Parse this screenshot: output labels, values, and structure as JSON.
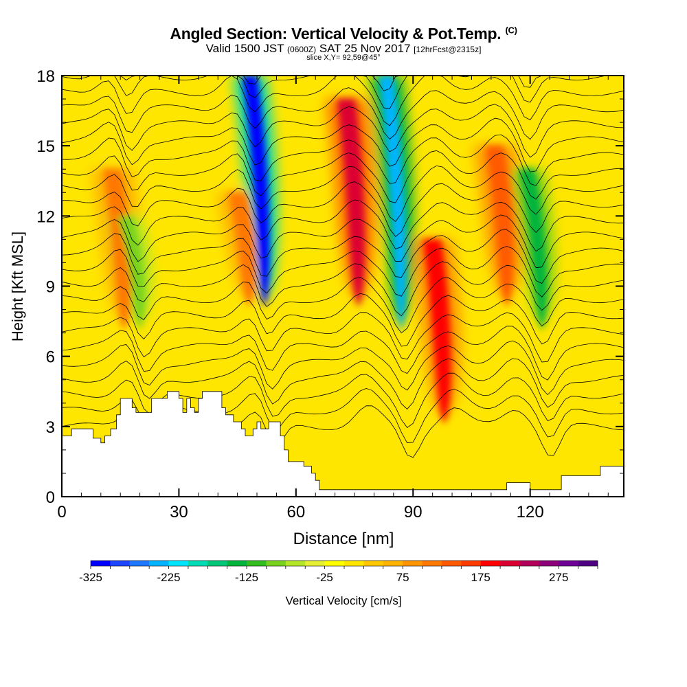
{
  "header": {
    "title_main": "Angled Section: Vertical Velocity & Pot.Temp.",
    "title_unit": "(C)",
    "valid_prefix": "Valid 1500 JST",
    "valid_utc": "(0600Z)",
    "valid_date": "SAT 25 Nov 2017",
    "forecast": "[12hrFcst@2315z]",
    "slice": "slice X,Y= 92,59@45°"
  },
  "chart_data": {
    "type": "heatmap",
    "xlabel": "Distance [nm]",
    "ylabel": "Height [Kft MSL]",
    "xlim": [
      0,
      144
    ],
    "ylim": [
      0,
      18
    ],
    "x_ticks": [
      0,
      30,
      60,
      90,
      120
    ],
    "y_ticks": [
      0,
      3,
      6,
      9,
      12,
      15,
      18
    ],
    "colorbar": {
      "label": "Vertical Velocity [cm/s]",
      "min": -325,
      "max": 325,
      "step": 25,
      "tick_values": [
        -325,
        -225,
        -125,
        -25,
        75,
        175,
        275
      ],
      "tick_labels": [
        "-325",
        "-225",
        "-125",
        "-25",
        "75",
        "175",
        "275"
      ],
      "colors": [
        "#0000ff",
        "#1e46ff",
        "#1e78ff",
        "#00b4ff",
        "#00e6ff",
        "#00dcb4",
        "#00c878",
        "#00b43c",
        "#32be1e",
        "#78d21e",
        "#b4e628",
        "#e6f032",
        "#ffff00",
        "#ffe600",
        "#ffc800",
        "#ffb400",
        "#ff9600",
        "#ff7800",
        "#ff5a00",
        "#ff3c00",
        "#ff0000",
        "#dc0032",
        "#b4005a",
        "#8c0078",
        "#6e0096",
        "#500082"
      ]
    },
    "updraft_maxima": [
      {
        "x": 16,
        "y_range": [
          8,
          14
        ],
        "w": 110
      },
      {
        "x": 48,
        "y_range": [
          9,
          13
        ],
        "w": 100
      },
      {
        "x": 76,
        "y_range": [
          9,
          17
        ],
        "w": 220
      },
      {
        "x": 98,
        "y_range": [
          4,
          11
        ],
        "w": 180
      },
      {
        "x": 114,
        "y_range": [
          9,
          15
        ],
        "w": 140
      }
    ],
    "downdraft_minima": [
      {
        "x": 20,
        "y_range": [
          8,
          12
        ],
        "w": -100
      },
      {
        "x": 52,
        "y_range": [
          9,
          18
        ],
        "w": -320
      },
      {
        "x": 87,
        "y_range": [
          8,
          18
        ],
        "w": -240
      },
      {
        "x": 123,
        "y_range": [
          8,
          14
        ],
        "w": -140
      }
    ],
    "terrain": [
      [
        0,
        2.6
      ],
      [
        2.5,
        2.6
      ],
      [
        2.5,
        2.9
      ],
      [
        8,
        2.9
      ],
      [
        8,
        2.5
      ],
      [
        10,
        2.5
      ],
      [
        10,
        2.3
      ],
      [
        11,
        2.3
      ],
      [
        11,
        2.6
      ],
      [
        12.5,
        2.6
      ],
      [
        12.5,
        2.9
      ],
      [
        14,
        2.9
      ],
      [
        14,
        3.5
      ],
      [
        15,
        3.5
      ],
      [
        15,
        4.2
      ],
      [
        18,
        4.2
      ],
      [
        18,
        3.8
      ],
      [
        19,
        3.8
      ],
      [
        19,
        3.6
      ],
      [
        23,
        3.6
      ],
      [
        23,
        4.2
      ],
      [
        27,
        4.2
      ],
      [
        27,
        4.5
      ],
      [
        30,
        4.5
      ],
      [
        30,
        4.2
      ],
      [
        31,
        4.2
      ],
      [
        31,
        3.6
      ],
      [
        32,
        3.6
      ],
      [
        32,
        4.2
      ],
      [
        33,
        4.2
      ],
      [
        33,
        3.8
      ],
      [
        34,
        3.8
      ],
      [
        34,
        3.6
      ],
      [
        35,
        3.6
      ],
      [
        35,
        4.2
      ],
      [
        36,
        4.2
      ],
      [
        36,
        4.5
      ],
      [
        41,
        4.5
      ],
      [
        41,
        3.8
      ],
      [
        42,
        3.8
      ],
      [
        42,
        3.5
      ],
      [
        44,
        3.5
      ],
      [
        44,
        3.2
      ],
      [
        46,
        3.2
      ],
      [
        46,
        2.9
      ],
      [
        47,
        2.9
      ],
      [
        47,
        2.6
      ],
      [
        49,
        2.6
      ],
      [
        49,
        2.9
      ],
      [
        50,
        2.9
      ],
      [
        50,
        3.2
      ],
      [
        51,
        3.2
      ],
      [
        51,
        2.9
      ],
      [
        53,
        2.9
      ],
      [
        53,
        3.2
      ],
      [
        56,
        3.2
      ],
      [
        56,
        2.6
      ],
      [
        57,
        2.6
      ],
      [
        57,
        2.0
      ],
      [
        58,
        2.0
      ],
      [
        58,
        1.5
      ],
      [
        62,
        1.5
      ],
      [
        62,
        1.3
      ],
      [
        64,
        1.3
      ],
      [
        64,
        1.0
      ],
      [
        65,
        1.0
      ],
      [
        65,
        0.7
      ],
      [
        66,
        0.7
      ],
      [
        66,
        0.3
      ],
      [
        114,
        0.3
      ],
      [
        114,
        0.6
      ],
      [
        120,
        0.6
      ],
      [
        120,
        0.3
      ],
      [
        128,
        0.3
      ],
      [
        128,
        0.9
      ],
      [
        138,
        0.9
      ],
      [
        138,
        1.3
      ],
      [
        144,
        1.3
      ],
      [
        144,
        0
      ],
      [
        0,
        0
      ]
    ]
  }
}
